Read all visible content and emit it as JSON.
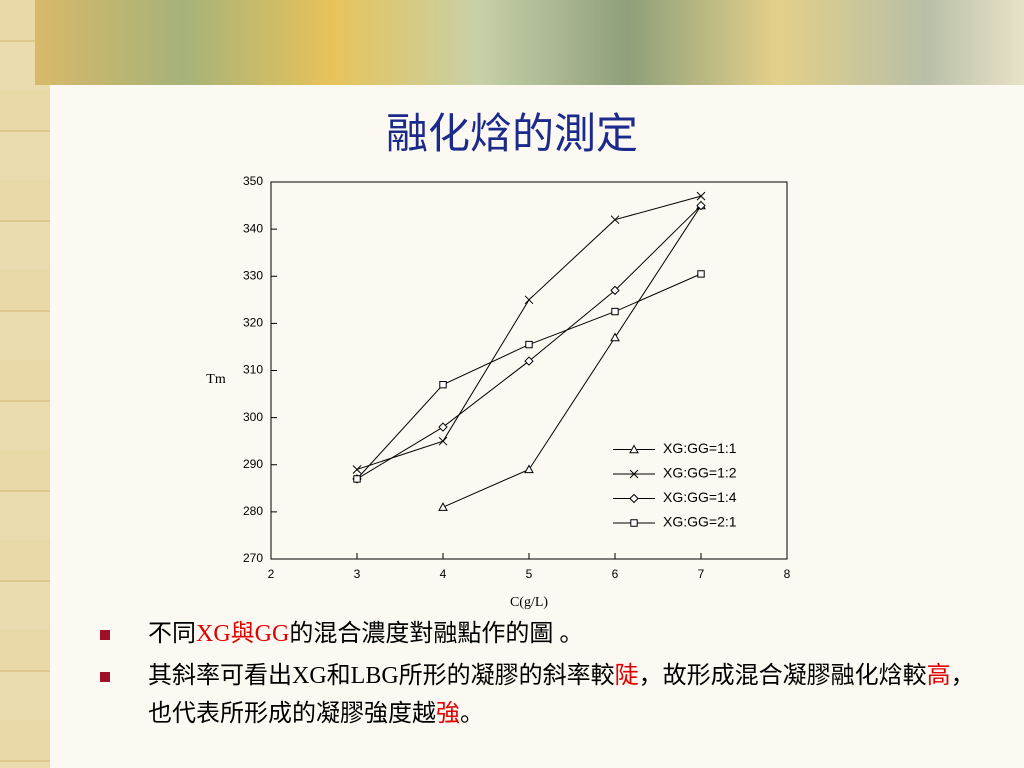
{
  "slide": {
    "title": "融化焓的測定",
    "bullets": [
      [
        {
          "text": "不同",
          "color": "#000000"
        },
        {
          "text": "XG與GG",
          "color": "#e00000"
        },
        {
          "text": "的混合濃度對融點作的圖 。",
          "color": "#000000"
        }
      ],
      [
        {
          "text": "其斜率可看出XG和LBG所形的凝膠的斜率較",
          "color": "#000000"
        },
        {
          "text": "陡",
          "color": "#e00000"
        },
        {
          "text": "，故形成混合凝膠融化焓較",
          "color": "#000000"
        },
        {
          "text": "高",
          "color": "#e00000"
        },
        {
          "text": "，也代表所形成的凝膠強度越",
          "color": "#000000"
        },
        {
          "text": "強",
          "color": "#e00000"
        },
        {
          "text": "。",
          "color": "#000000"
        }
      ]
    ]
  },
  "chart_data": {
    "type": "line",
    "x_label": "C(g/L)",
    "y_label": "Tm",
    "xlim": [
      2,
      8
    ],
    "xticks": [
      2,
      3,
      4,
      5,
      6,
      7,
      8
    ],
    "ylim": [
      270,
      350
    ],
    "yticks": [
      270,
      280,
      290,
      300,
      310,
      320,
      330,
      340,
      350
    ],
    "legend": "lower right",
    "series": [
      {
        "name": "XG:GG=1:1",
        "color": "#000000",
        "marker": "triangle",
        "x": [
          4,
          5,
          6,
          7
        ],
        "values": [
          281,
          289,
          317,
          345
        ]
      },
      {
        "name": "XG:GG=1:2",
        "color": "#000000",
        "marker": "x",
        "x": [
          3,
          4,
          5,
          6,
          7
        ],
        "values": [
          289,
          295,
          325,
          342,
          347
        ]
      },
      {
        "name": "XG:GG=1:4",
        "color": "#000000",
        "marker": "diamond",
        "x": [
          3,
          4,
          5,
          6,
          7
        ],
        "values": [
          287,
          298,
          312,
          327,
          345
        ]
      },
      {
        "name": "XG:GG=2:1",
        "color": "#000000",
        "marker": "square",
        "x": [
          3,
          4,
          5,
          6,
          7
        ],
        "values": [
          287,
          307,
          315.5,
          322.5,
          330.5
        ]
      }
    ]
  }
}
